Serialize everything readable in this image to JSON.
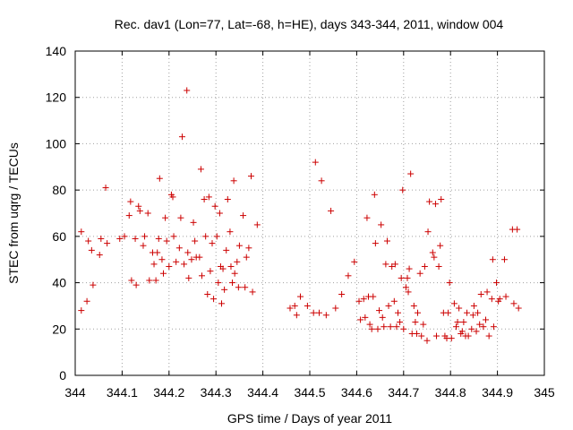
{
  "chart_data": {
    "type": "scatter",
    "title": "Rec. dav1 (Lon=77, Lat=-68, h=HE), days 343-344, 2011, window 004",
    "xlabel": "GPS time / Days of year 2011",
    "ylabel": "STEC from uqrg / TECUs",
    "xlim": [
      344,
      345
    ],
    "ylim": [
      0,
      140
    ],
    "x_ticks": [
      344,
      344.1,
      344.2,
      344.3,
      344.4,
      344.5,
      344.6,
      344.7,
      344.8,
      344.9,
      345
    ],
    "x_tick_labels": [
      "344",
      "344.1",
      "344.2",
      "344.3",
      "344.4",
      "344.5",
      "344.6",
      "344.7",
      "344.8",
      "344.9",
      "345"
    ],
    "y_ticks": [
      0,
      20,
      40,
      60,
      80,
      100,
      120,
      140
    ],
    "y_tick_labels": [
      "0",
      "20",
      "40",
      "60",
      "80",
      "100",
      "120",
      "140"
    ],
    "grid": true,
    "marker": "+",
    "color": "#cc0000",
    "points": [
      [
        344.013,
        62
      ],
      [
        344.013,
        28
      ],
      [
        344.025,
        32
      ],
      [
        344.028,
        58
      ],
      [
        344.035,
        54
      ],
      [
        344.038,
        39
      ],
      [
        344.052,
        52
      ],
      [
        344.055,
        59
      ],
      [
        344.065,
        81
      ],
      [
        344.068,
        57
      ],
      [
        344.095,
        59
      ],
      [
        344.105,
        60
      ],
      [
        344.115,
        69
      ],
      [
        344.118,
        75
      ],
      [
        344.12,
        41
      ],
      [
        344.128,
        59
      ],
      [
        344.13,
        39
      ],
      [
        344.135,
        73
      ],
      [
        344.138,
        71
      ],
      [
        344.145,
        56
      ],
      [
        344.148,
        60
      ],
      [
        344.155,
        70
      ],
      [
        344.158,
        41
      ],
      [
        344.165,
        53
      ],
      [
        344.168,
        48
      ],
      [
        344.172,
        41
      ],
      [
        344.175,
        53
      ],
      [
        344.178,
        59
      ],
      [
        344.18,
        85
      ],
      [
        344.185,
        50
      ],
      [
        344.188,
        44
      ],
      [
        344.192,
        68
      ],
      [
        344.195,
        58
      ],
      [
        344.2,
        47
      ],
      [
        344.205,
        78
      ],
      [
        344.208,
        77
      ],
      [
        344.21,
        60
      ],
      [
        344.215,
        49
      ],
      [
        344.222,
        55
      ],
      [
        344.225,
        68
      ],
      [
        344.228,
        103
      ],
      [
        344.232,
        48
      ],
      [
        344.238,
        123
      ],
      [
        344.24,
        53
      ],
      [
        344.242,
        42
      ],
      [
        344.248,
        50
      ],
      [
        344.252,
        66
      ],
      [
        344.255,
        58
      ],
      [
        344.258,
        51
      ],
      [
        344.265,
        51
      ],
      [
        344.268,
        89
      ],
      [
        344.27,
        43
      ],
      [
        344.275,
        76
      ],
      [
        344.278,
        60
      ],
      [
        344.282,
        35
      ],
      [
        344.285,
        77
      ],
      [
        344.288,
        45
      ],
      [
        344.292,
        57
      ],
      [
        344.295,
        33
      ],
      [
        344.298,
        73
      ],
      [
        344.302,
        60
      ],
      [
        344.305,
        40
      ],
      [
        344.308,
        70
      ],
      [
        344.31,
        47
      ],
      [
        344.312,
        31
      ],
      [
        344.315,
        46
      ],
      [
        344.318,
        37
      ],
      [
        344.322,
        54
      ],
      [
        344.325,
        76
      ],
      [
        344.33,
        62
      ],
      [
        344.332,
        47
      ],
      [
        344.335,
        40
      ],
      [
        344.338,
        84
      ],
      [
        344.34,
        44
      ],
      [
        344.345,
        49
      ],
      [
        344.348,
        38
      ],
      [
        344.35,
        56
      ],
      [
        344.358,
        69
      ],
      [
        344.362,
        38
      ],
      [
        344.365,
        51
      ],
      [
        344.37,
        55
      ],
      [
        344.375,
        86
      ],
      [
        344.378,
        36
      ],
      [
        344.388,
        65
      ],
      [
        344.458,
        29
      ],
      [
        344.468,
        30
      ],
      [
        344.472,
        26
      ],
      [
        344.48,
        34
      ],
      [
        344.495,
        30
      ],
      [
        344.508,
        27
      ],
      [
        344.512,
        92
      ],
      [
        344.52,
        27
      ],
      [
        344.525,
        84
      ],
      [
        344.535,
        26
      ],
      [
        344.545,
        71
      ],
      [
        344.555,
        29
      ],
      [
        344.568,
        35
      ],
      [
        344.582,
        43
      ],
      [
        344.595,
        49
      ],
      [
        344.605,
        32
      ],
      [
        344.608,
        24
      ],
      [
        344.615,
        33
      ],
      [
        344.618,
        25
      ],
      [
        344.622,
        68
      ],
      [
        344.625,
        34
      ],
      [
        344.628,
        22
      ],
      [
        344.632,
        20
      ],
      [
        344.635,
        34
      ],
      [
        344.638,
        78
      ],
      [
        344.64,
        57
      ],
      [
        344.645,
        20
      ],
      [
        344.648,
        28
      ],
      [
        344.652,
        65
      ],
      [
        344.655,
        25
      ],
      [
        344.658,
        21
      ],
      [
        344.662,
        48
      ],
      [
        344.665,
        58
      ],
      [
        344.668,
        30
      ],
      [
        344.672,
        21
      ],
      [
        344.675,
        47
      ],
      [
        344.68,
        32
      ],
      [
        344.682,
        48
      ],
      [
        344.685,
        21
      ],
      [
        344.688,
        27
      ],
      [
        344.692,
        23
      ],
      [
        344.695,
        42
      ],
      [
        344.698,
        80
      ],
      [
        344.7,
        20
      ],
      [
        344.705,
        38
      ],
      [
        344.708,
        42
      ],
      [
        344.71,
        36
      ],
      [
        344.712,
        46
      ],
      [
        344.715,
        87
      ],
      [
        344.718,
        18
      ],
      [
        344.722,
        30
      ],
      [
        344.725,
        23
      ],
      [
        344.728,
        18
      ],
      [
        344.73,
        27
      ],
      [
        344.735,
        44
      ],
      [
        344.738,
        17
      ],
      [
        344.742,
        22
      ],
      [
        344.745,
        47
      ],
      [
        344.75,
        15
      ],
      [
        344.752,
        62
      ],
      [
        344.755,
        75
      ],
      [
        344.762,
        53
      ],
      [
        344.765,
        51
      ],
      [
        344.768,
        74
      ],
      [
        344.77,
        17
      ],
      [
        344.775,
        47
      ],
      [
        344.778,
        56
      ],
      [
        344.78,
        76
      ],
      [
        344.785,
        27
      ],
      [
        344.788,
        17
      ],
      [
        344.792,
        16
      ],
      [
        344.795,
        27
      ],
      [
        344.798,
        40
      ],
      [
        344.802,
        16
      ],
      [
        344.808,
        31
      ],
      [
        344.812,
        21
      ],
      [
        344.815,
        23
      ],
      [
        344.818,
        29
      ],
      [
        344.822,
        18
      ],
      [
        344.825,
        19
      ],
      [
        344.828,
        23
      ],
      [
        344.832,
        17
      ],
      [
        344.835,
        27
      ],
      [
        344.838,
        17
      ],
      [
        344.845,
        20
      ],
      [
        344.848,
        26
      ],
      [
        344.85,
        30
      ],
      [
        344.855,
        19
      ],
      [
        344.858,
        27
      ],
      [
        344.862,
        22
      ],
      [
        344.865,
        35
      ],
      [
        344.87,
        21
      ],
      [
        344.875,
        24
      ],
      [
        344.878,
        36
      ],
      [
        344.882,
        17
      ],
      [
        344.888,
        33
      ],
      [
        344.89,
        50
      ],
      [
        344.892,
        21
      ],
      [
        344.898,
        40
      ],
      [
        344.902,
        32
      ],
      [
        344.905,
        33
      ],
      [
        344.915,
        50
      ],
      [
        344.918,
        34
      ],
      [
        344.932,
        63
      ],
      [
        344.935,
        31
      ],
      [
        344.942,
        63
      ],
      [
        344.945,
        29
      ]
    ]
  }
}
